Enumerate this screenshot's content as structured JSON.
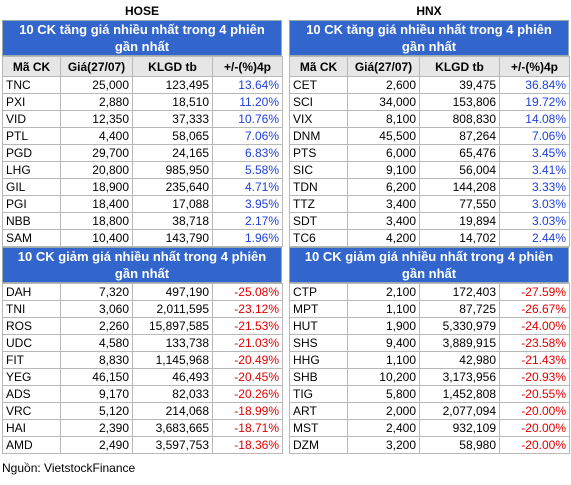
{
  "panels": [
    {
      "label": "HOSE",
      "gainers": {
        "title": "10 CK tăng giá nhiều nhất trong 4 phiên gần nhất",
        "header": [
          "Mã CK",
          "Giá(27/07)",
          "KLGD tb",
          "+/-(%)4p"
        ],
        "rows": [
          [
            "TNC",
            "25,000",
            "123,495",
            "13.64%"
          ],
          [
            "PXI",
            "2,880",
            "18,510",
            "11.20%"
          ],
          [
            "VID",
            "12,350",
            "37,333",
            "10.76%"
          ],
          [
            "PTL",
            "4,400",
            "58,065",
            "7.06%"
          ],
          [
            "PGD",
            "29,700",
            "24,165",
            "6.83%"
          ],
          [
            "LHG",
            "20,800",
            "985,950",
            "5.58%"
          ],
          [
            "GIL",
            "18,900",
            "235,640",
            "4.71%"
          ],
          [
            "PGI",
            "18,400",
            "17,088",
            "3.95%"
          ],
          [
            "NBB",
            "18,800",
            "38,718",
            "2.17%"
          ],
          [
            "SAM",
            "10,400",
            "143,790",
            "1.96%"
          ]
        ]
      },
      "losers": {
        "title": "10 CK giảm giá nhiều nhất trong 4 phiên gần nhất",
        "rows": [
          [
            "DAH",
            "7,320",
            "497,190",
            "-25.08%"
          ],
          [
            "TNI",
            "3,060",
            "2,011,595",
            "-23.12%"
          ],
          [
            "ROS",
            "2,260",
            "15,897,585",
            "-21.53%"
          ],
          [
            "UDC",
            "4,580",
            "133,738",
            "-21.03%"
          ],
          [
            "FIT",
            "8,830",
            "1,145,968",
            "-20.49%"
          ],
          [
            "YEG",
            "46,150",
            "46,493",
            "-20.45%"
          ],
          [
            "ADS",
            "9,170",
            "82,033",
            "-20.26%"
          ],
          [
            "VRC",
            "5,120",
            "214,068",
            "-18.99%"
          ],
          [
            "HAI",
            "2,390",
            "3,683,665",
            "-18.71%"
          ],
          [
            "AMD",
            "2,490",
            "3,597,753",
            "-18.36%"
          ]
        ]
      }
    },
    {
      "label": "HNX",
      "gainers": {
        "title": "10 CK tăng giá nhiều nhất trong 4 phiên gần nhất",
        "header": [
          "Mã CK",
          "Giá(27/07)",
          "KLGD tb",
          "+/-(%)4p"
        ],
        "rows": [
          [
            "CET",
            "2,600",
            "39,475",
            "36.84%"
          ],
          [
            "SCI",
            "34,000",
            "153,806",
            "19.72%"
          ],
          [
            "VIX",
            "8,100",
            "808,830",
            "14.08%"
          ],
          [
            "DNM",
            "45,500",
            "87,264",
            "7.06%"
          ],
          [
            "PTS",
            "6,000",
            "65,476",
            "3.45%"
          ],
          [
            "SIC",
            "9,100",
            "56,004",
            "3.41%"
          ],
          [
            "TDN",
            "6,200",
            "144,208",
            "3.33%"
          ],
          [
            "TTZ",
            "3,400",
            "77,550",
            "3.03%"
          ],
          [
            "SDT",
            "3,400",
            "19,894",
            "3.03%"
          ],
          [
            "TC6",
            "4,200",
            "14,702",
            "2.44%"
          ]
        ]
      },
      "losers": {
        "title": "10 CK giảm giá nhiều nhất trong 4 phiên gần nhất",
        "rows": [
          [
            "CTP",
            "2,100",
            "172,403",
            "-27.59%"
          ],
          [
            "MPT",
            "1,100",
            "87,725",
            "-26.67%"
          ],
          [
            "HUT",
            "1,900",
            "5,330,979",
            "-24.00%"
          ],
          [
            "SHS",
            "9,400",
            "3,889,915",
            "-23.58%"
          ],
          [
            "HHG",
            "1,100",
            "42,980",
            "-21.43%"
          ],
          [
            "SHB",
            "10,200",
            "3,173,956",
            "-20.93%"
          ],
          [
            "TIG",
            "5,800",
            "1,452,808",
            "-20.55%"
          ],
          [
            "ART",
            "2,000",
            "2,077,094",
            "-20.00%"
          ],
          [
            "MST",
            "2,400",
            "932,109",
            "-20.00%"
          ],
          [
            "DZM",
            "3,200",
            "58,980",
            "-20.00%"
          ]
        ]
      }
    }
  ],
  "source": "Nguồn: VietstockFinance"
}
